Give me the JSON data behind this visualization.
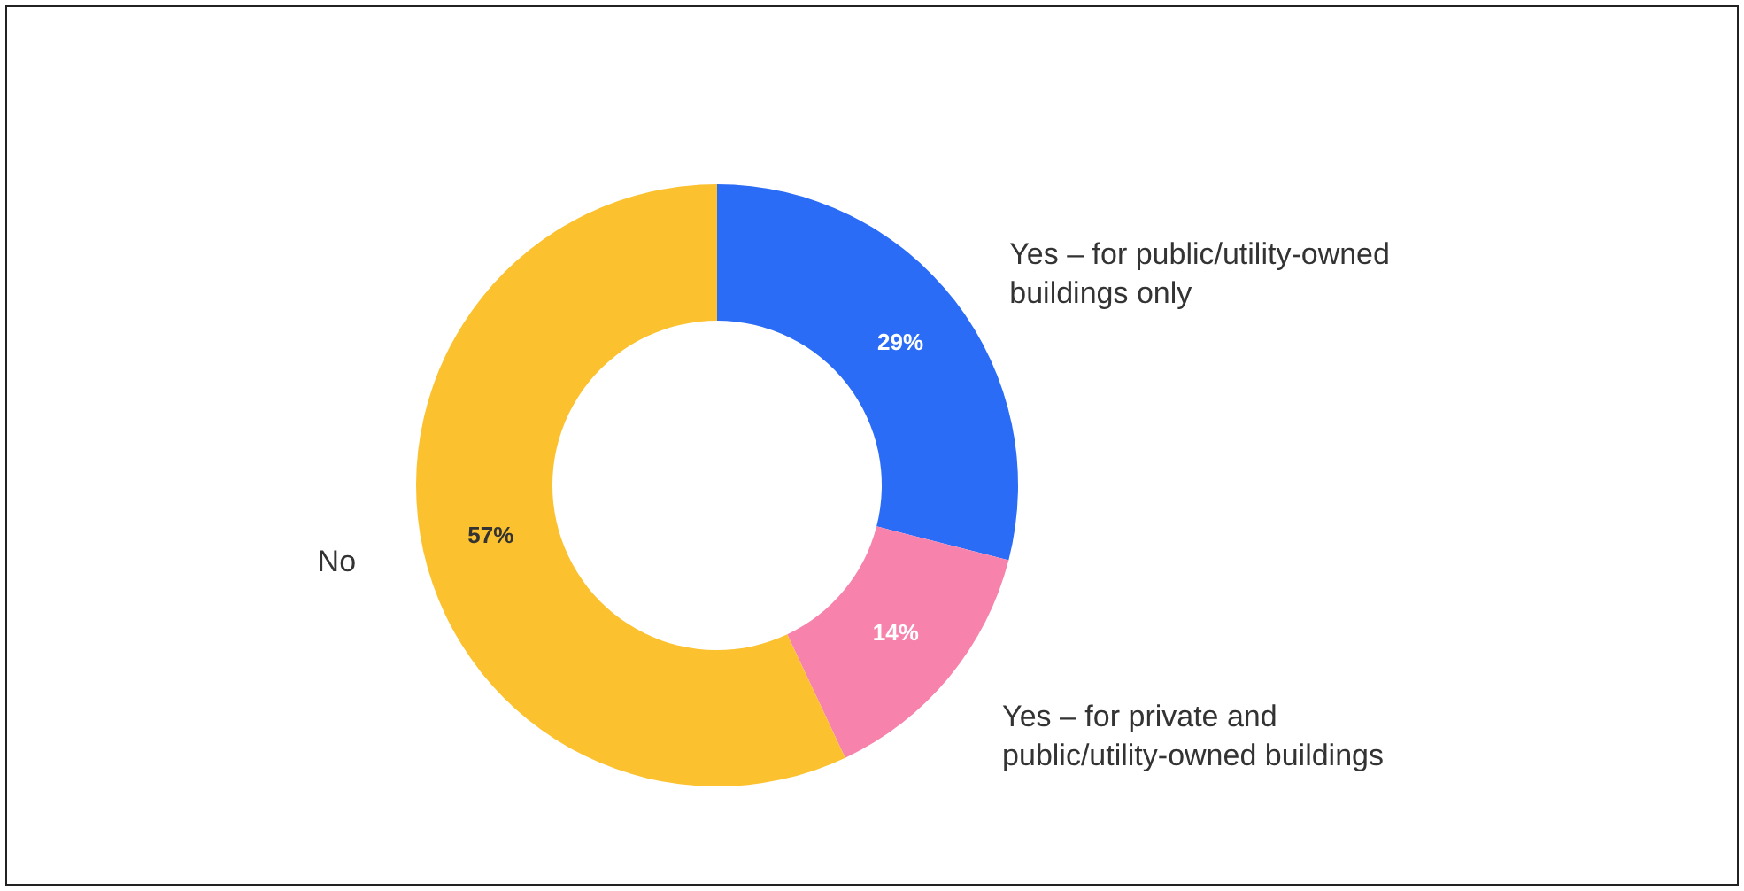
{
  "chart_data": {
    "type": "donut",
    "categories": [
      "Yes – for public/utility-owned buildings only",
      "Yes – for private and public/utility-owned buildings",
      "No"
    ],
    "values": [
      29,
      14,
      57
    ],
    "colors": [
      "#2b6cf6",
      "#f783ad",
      "#fcc12f"
    ],
    "value_labels": [
      "29%",
      "14%",
      "57%"
    ]
  }
}
